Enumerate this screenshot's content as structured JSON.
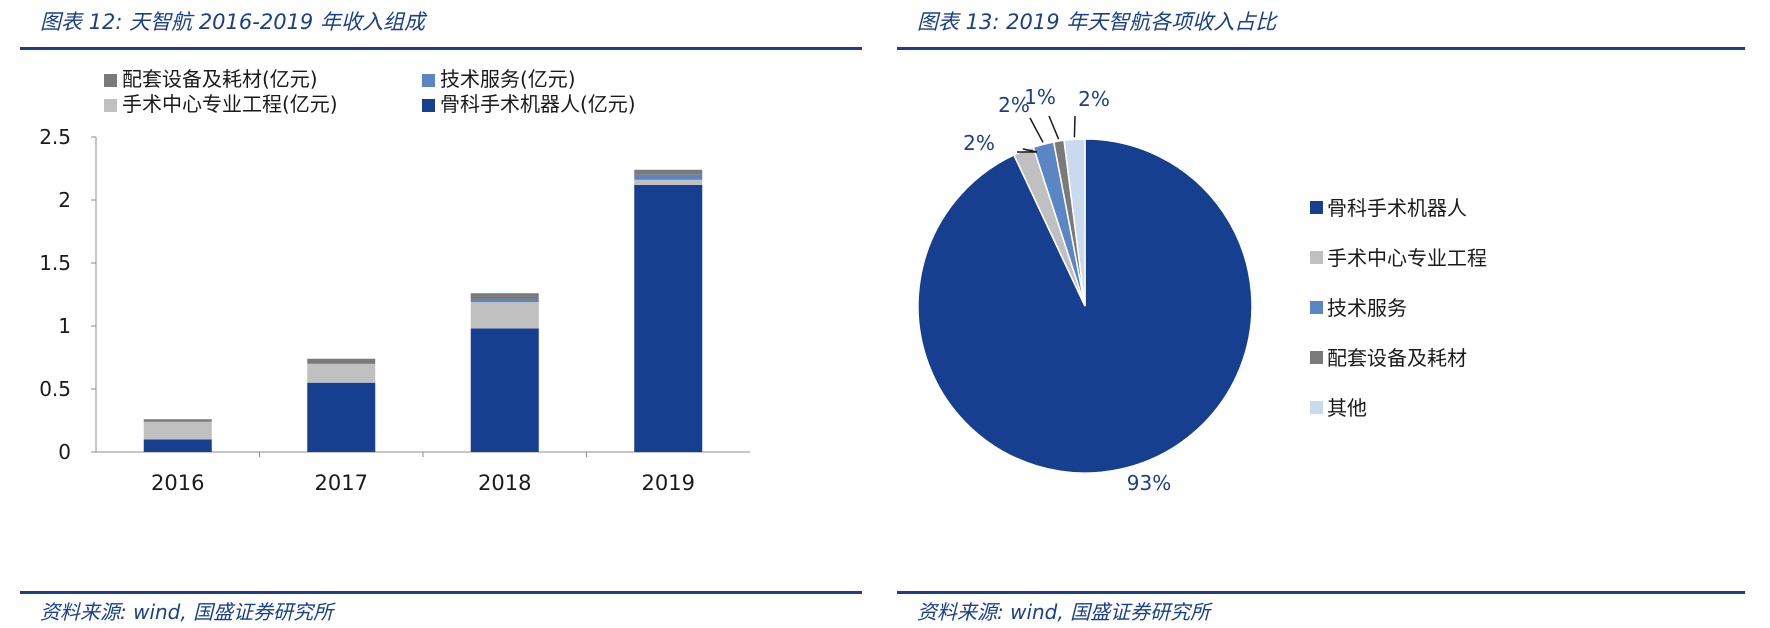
{
  "left": {
    "title": "图表 12:  天智航 2016-2019 年收入组成",
    "source": "资料来源:  wind,  国盛证券研究所"
  },
  "right": {
    "title": "图表 13:  2019 年天智航各项收入占比",
    "source": "资料来源:  wind,  国盛证券研究所"
  },
  "chart_data": [
    {
      "type": "bar",
      "stacked": true,
      "title": "",
      "xlabel": "",
      "ylabel": "",
      "categories": [
        "2016",
        "2017",
        "2018",
        "2019"
      ],
      "ylim": [
        0,
        2.5
      ],
      "yticks": [
        0,
        0.5,
        1,
        1.5,
        2,
        2.5
      ],
      "ytick_labels": [
        "0",
        "0.5",
        "1",
        "1.5",
        "2",
        "2.5"
      ],
      "legend_position": "top",
      "series": [
        {
          "name": "骨科手术机器人(亿元)",
          "color": "#163f90",
          "values": [
            0.1,
            0.55,
            0.98,
            2.12
          ]
        },
        {
          "name": "手术中心专业工程(亿元)",
          "color": "#c0c0c0",
          "values": [
            0.14,
            0.15,
            0.21,
            0.04
          ]
        },
        {
          "name": "技术服务(亿元)",
          "color": "#5b86c6",
          "values": [
            0.0,
            0.0,
            0.02,
            0.04
          ]
        },
        {
          "name": "配套设备及耗材(亿元)",
          "color": "#7a7a7a",
          "values": [
            0.02,
            0.04,
            0.05,
            0.04
          ]
        }
      ],
      "legend_order": [
        "配套设备及耗材(亿元)",
        "技术服务(亿元)",
        "手术中心专业工程(亿元)",
        "骨科手术机器人(亿元)"
      ]
    },
    {
      "type": "pie",
      "title": "",
      "legend_position": "right",
      "slices": [
        {
          "name": "骨科手术机器人",
          "value": 93,
          "label": "93%",
          "color": "#163f90"
        },
        {
          "name": "手术中心专业工程",
          "value": 2,
          "label": "2%",
          "color": "#c0c0c0"
        },
        {
          "name": "技术服务",
          "value": 2,
          "label": "2%",
          "color": "#5b86c6"
        },
        {
          "name": "配套设备及耗材",
          "value": 1,
          "label": "1%",
          "color": "#7a7a7a"
        },
        {
          "name": "其他",
          "value": 2,
          "label": "2%",
          "color": "#c9d9ee"
        }
      ]
    }
  ]
}
